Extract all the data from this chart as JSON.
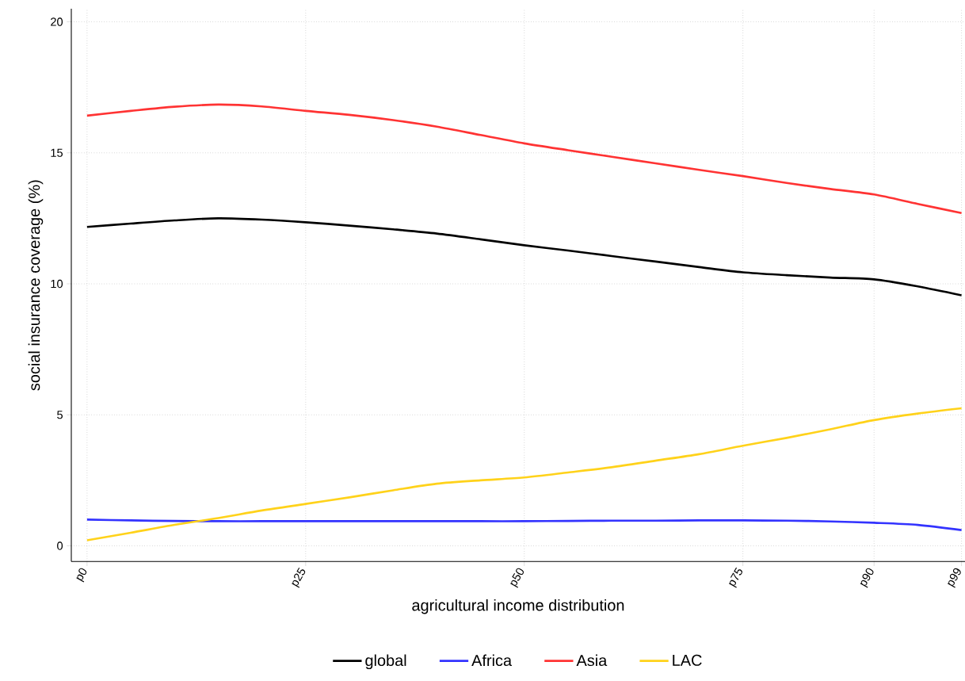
{
  "chart_data": {
    "type": "line",
    "xlabel": "agricultural income distribution",
    "ylabel": "social insurance coverage (%)",
    "ylim": [
      -0.6,
      20.5
    ],
    "yticks": [
      0,
      5,
      10,
      15,
      20
    ],
    "grid": true,
    "legend": "bottom",
    "marker": "none",
    "line_style": "solid",
    "categories": [
      "p0",
      null,
      null,
      null,
      null,
      "p25",
      null,
      null,
      null,
      null,
      "p50",
      null,
      null,
      null,
      null,
      "p75",
      null,
      null,
      "p90",
      null,
      "p99"
    ],
    "series": [
      {
        "name": "global",
        "color": "#000000",
        "values": [
          12.17,
          12.3,
          12.42,
          12.5,
          12.45,
          12.35,
          12.22,
          12.08,
          11.92,
          11.7,
          11.47,
          11.27,
          11.06,
          10.85,
          10.64,
          10.44,
          10.33,
          10.24,
          10.17,
          9.9,
          9.56
        ]
      },
      {
        "name": "Africa",
        "color": "#3333ff",
        "values": [
          1.0,
          0.97,
          0.95,
          0.94,
          0.94,
          0.94,
          0.94,
          0.94,
          0.94,
          0.94,
          0.94,
          0.95,
          0.96,
          0.96,
          0.97,
          0.97,
          0.96,
          0.93,
          0.88,
          0.8,
          0.6
        ]
      },
      {
        "name": "Asia",
        "color": "#ff3333",
        "values": [
          16.42,
          16.6,
          16.76,
          16.84,
          16.77,
          16.6,
          16.45,
          16.25,
          16.0,
          15.68,
          15.36,
          15.1,
          14.85,
          14.6,
          14.35,
          14.11,
          13.85,
          13.62,
          13.41,
          13.05,
          12.7
        ]
      },
      {
        "name": "LAC",
        "color": "#ffd21a",
        "values": [
          0.21,
          0.5,
          0.8,
          1.06,
          1.35,
          1.6,
          1.85,
          2.12,
          2.37,
          2.5,
          2.61,
          2.8,
          3.0,
          3.25,
          3.5,
          3.82,
          4.12,
          4.45,
          4.8,
          5.05,
          5.25
        ]
      }
    ]
  }
}
